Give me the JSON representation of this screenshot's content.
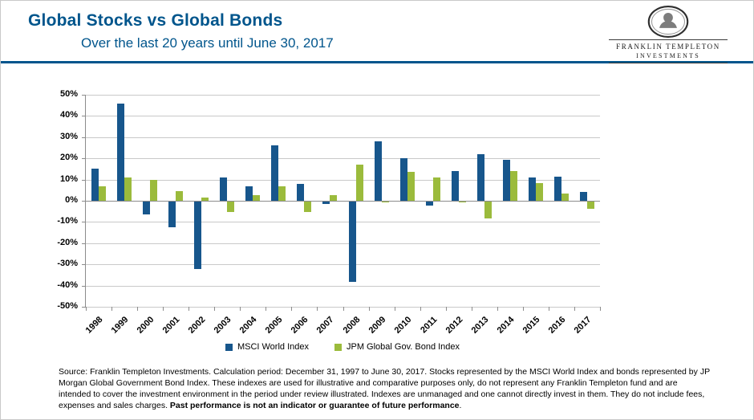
{
  "header": {
    "title": "Global Stocks vs Global Bonds",
    "subtitle": "Over the last 20 years until June 30, 2017"
  },
  "logo": {
    "line1": "FRANKLIN TEMPLETON",
    "line2": "INVESTMENTS"
  },
  "chart_data": {
    "type": "bar",
    "title": "Global Stocks vs Global Bonds",
    "subtitle": "Over the last 20 years until June 30, 2017",
    "categories": [
      "1998",
      "1999",
      "2000",
      "2001",
      "2002",
      "2003",
      "2004",
      "2005",
      "2006",
      "2007",
      "2008",
      "2009",
      "2010",
      "2011",
      "2012",
      "2013",
      "2014",
      "2015",
      "2016",
      "2017"
    ],
    "series": [
      {
        "name": "MSCI World Index",
        "color": "#17568C",
        "values": [
          15,
          46,
          -6,
          -12,
          -32,
          11,
          7,
          26,
          8,
          -1,
          -38,
          28,
          20,
          -2,
          14,
          22,
          19.5,
          11,
          11.5,
          4
        ]
      },
      {
        "name": "JPM Global Gov. Bond Index",
        "color": "#9BBB3C",
        "values": [
          7,
          11,
          10,
          4.5,
          1.5,
          -5,
          2.5,
          7,
          -5,
          2.5,
          17,
          -0.5,
          13.5,
          11,
          -0.5,
          -8,
          14,
          8.5,
          3.5,
          -3.5
        ]
      }
    ],
    "ylim": [
      -50,
      50
    ],
    "ytick_step": 10,
    "ytick_labels": [
      "50%",
      "40%",
      "30%",
      "20%",
      "10%",
      "0%",
      "-10%",
      "-20%",
      "-30%",
      "-40%",
      "-50%"
    ],
    "xlabel": "",
    "ylabel": "",
    "grid": true,
    "legend_position": "bottom"
  },
  "footnote": {
    "text": "Source: Franklin Templeton Investments. Calculation period: December 31, 1997 to June 30, 2017.  Stocks represented by the MSCI World Index and bonds represented by JP Morgan Global Government Bond Index. These indexes are used for illustrative and comparative purposes only, do not represent any Franklin Templeton fund and are intended to cover the investment environment in the period under review illustrated. Indexes are unmanaged and one cannot directly invest in them. They do not include fees, expenses and sales charges. ",
    "bold_text": "Past performance is not an indicator or guarantee of future performance",
    "suffix": "."
  }
}
